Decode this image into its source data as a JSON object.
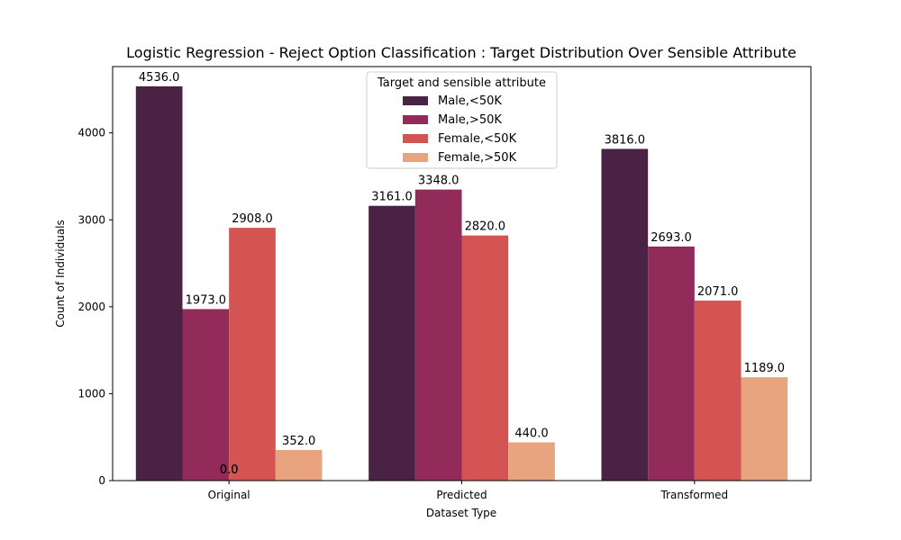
{
  "chart_data": {
    "type": "bar",
    "title": "Logistic Regression - Reject Option Classification : Target Distribution Over Sensible Attribute",
    "xlabel": "Dataset Type",
    "ylabel": "Count of Individuals",
    "categories": [
      "Original",
      "Predicted",
      "Transformed"
    ],
    "ylim": [
      0,
      4762.8
    ],
    "yticks": [
      0,
      1000,
      2000,
      3000,
      4000
    ],
    "ytick_labels": [
      "0",
      "1000",
      "2000",
      "3000",
      "4000"
    ],
    "grid": false,
    "legend": {
      "title": "Target and sensible attribute",
      "placement": "upper-center"
    },
    "series": [
      {
        "name": "Male,<50K",
        "color": "#4a2243",
        "values": [
          4536.0,
          3161.0,
          3816.0
        ],
        "labels": [
          "4536.0",
          "3161.0",
          "3816.0"
        ]
      },
      {
        "name": "Male,>50K",
        "color": "#922b5a",
        "values": [
          1973.0,
          3348.0,
          2693.0
        ],
        "labels": [
          "1973.0",
          "3348.0",
          "2693.0"
        ]
      },
      {
        "name": "Female,<50K",
        "color": "#d45454",
        "values": [
          2908.0,
          2820.0,
          2071.0
        ],
        "labels": [
          "2908.0",
          "2820.0",
          "2071.0"
        ]
      },
      {
        "name": "Female,>50K",
        "color": "#e8a47e",
        "values": [
          352.0,
          440.0,
          1189.0
        ],
        "labels": [
          "352.0",
          "440.0",
          "1189.0"
        ]
      }
    ],
    "annotations": [
      {
        "text": "0.0",
        "category": "Original"
      },
      {
        "text": "0.0",
        "category": "Original"
      }
    ]
  }
}
